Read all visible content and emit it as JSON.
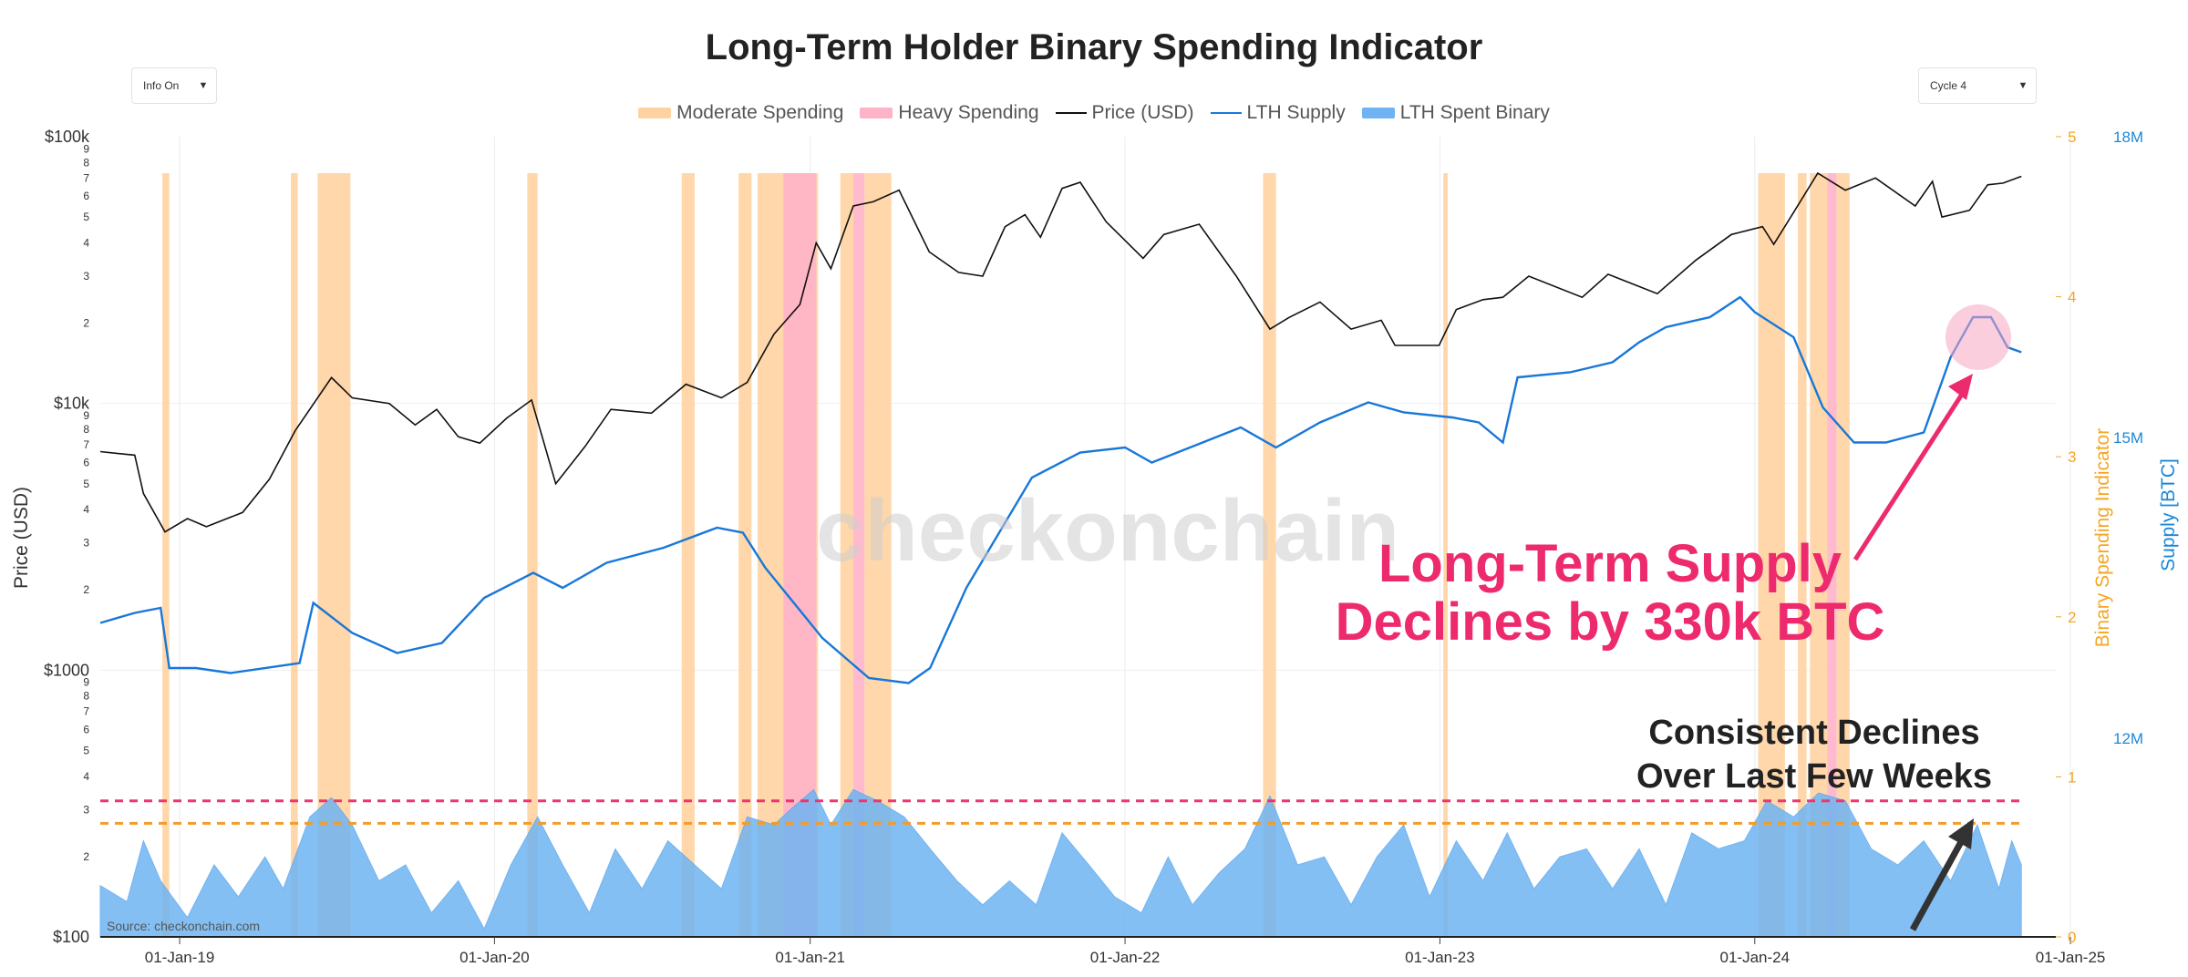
{
  "title": "Long-Term Holder Binary Spending Indicator",
  "info_dropdown": {
    "value": "Info On"
  },
  "cycle_dropdown": {
    "value": "Cycle 4"
  },
  "legend": [
    {
      "label": "Moderate Spending",
      "color": "#ffd3a1",
      "kind": "area"
    },
    {
      "label": "Heavy Spending",
      "color": "#ffb3c8",
      "kind": "area"
    },
    {
      "label": "Price (USD)",
      "color": "#111111",
      "kind": "line"
    },
    {
      "label": "LTH Supply",
      "color": "#1877d8",
      "kind": "line"
    },
    {
      "label": "LTH Spent Binary",
      "color": "#6fb4f2",
      "kind": "area"
    }
  ],
  "watermark": "checkonchain",
  "source": "Source: checkonchain.com",
  "annotations": [
    {
      "text": "Long-Term Supply",
      "color": "#ee2a6e"
    },
    {
      "text": "Declines by 330k BTC",
      "color": "#ee2a6e"
    },
    {
      "text": "Consistent Declines",
      "color": "#222222"
    },
    {
      "text": "Over Last Few Weeks",
      "color": "#222222"
    }
  ],
  "chart_data": {
    "type": "line",
    "title": "Long-Term Holder Binary Spending Indicator",
    "xlim": [
      "2018-10-01",
      "2024-12-15"
    ],
    "x_ticks": [
      "01-Jan-19",
      "01-Jan-20",
      "01-Jan-21",
      "01-Jan-22",
      "01-Jan-23",
      "01-Jan-24",
      "01-Jan-25"
    ],
    "y_left": {
      "label": "Price (USD)",
      "scale": "log",
      "range": [
        100,
        100000
      ],
      "major_ticks": [
        "$100",
        "$1000",
        "$10k",
        "$100k"
      ],
      "minor_ticks": [
        "2",
        "3",
        "4",
        "5",
        "6",
        "7",
        "8",
        "9"
      ]
    },
    "y_right_1": {
      "label": "Binary Spending Indicator",
      "range": [
        0,
        5
      ],
      "ticks": [
        "0",
        "1",
        "2",
        "3",
        "4",
        "5"
      ],
      "color": "#f5a623"
    },
    "y_right_2": {
      "label": "Supply [BTC]",
      "ticks": [
        "12M",
        "15M",
        "18M"
      ],
      "color": "#1a88d8"
    },
    "thresholds": [
      {
        "name": "Heavy",
        "value": 0.85,
        "color": "#f0336d"
      },
      {
        "name": "Moderate",
        "value": 0.71,
        "color": "#f39c2a"
      }
    ],
    "series": [
      {
        "name": "Price (USD)",
        "axis": "left",
        "color": "#111111",
        "points": [
          [
            "2018-10-01",
            6600
          ],
          [
            "2018-10-20",
            6500
          ],
          [
            "2018-11-10",
            6400
          ],
          [
            "2018-11-20",
            4600
          ],
          [
            "2018-12-15",
            3300
          ],
          [
            "2019-01-10",
            3700
          ],
          [
            "2019-02-01",
            3450
          ],
          [
            "2019-03-15",
            3900
          ],
          [
            "2019-04-15",
            5200
          ],
          [
            "2019-05-15",
            7900
          ],
          [
            "2019-06-26",
            12500
          ],
          [
            "2019-07-20",
            10500
          ],
          [
            "2019-09-01",
            10000
          ],
          [
            "2019-10-01",
            8300
          ],
          [
            "2019-10-26",
            9500
          ],
          [
            "2019-11-20",
            7500
          ],
          [
            "2019-12-15",
            7100
          ],
          [
            "2020-01-15",
            8800
          ],
          [
            "2020-02-13",
            10300
          ],
          [
            "2020-03-12",
            5000
          ],
          [
            "2020-04-15",
            6900
          ],
          [
            "2020-05-15",
            9500
          ],
          [
            "2020-07-01",
            9200
          ],
          [
            "2020-08-10",
            11800
          ],
          [
            "2020-09-20",
            10500
          ],
          [
            "2020-10-20",
            12000
          ],
          [
            "2020-11-20",
            18200
          ],
          [
            "2020-12-20",
            23500
          ],
          [
            "2021-01-08",
            40000
          ],
          [
            "2021-01-25",
            32000
          ],
          [
            "2021-02-20",
            55000
          ],
          [
            "2021-03-15",
            57000
          ],
          [
            "2021-04-14",
            63000
          ],
          [
            "2021-05-19",
            37000
          ],
          [
            "2021-06-22",
            31000
          ],
          [
            "2021-07-20",
            30000
          ],
          [
            "2021-08-15",
            46000
          ],
          [
            "2021-09-07",
            51000
          ],
          [
            "2021-09-25",
            42000
          ],
          [
            "2021-10-20",
            64000
          ],
          [
            "2021-11-10",
            67500
          ],
          [
            "2021-12-10",
            48000
          ],
          [
            "2022-01-22",
            35000
          ],
          [
            "2022-02-15",
            43000
          ],
          [
            "2022-03-28",
            47000
          ],
          [
            "2022-05-10",
            30000
          ],
          [
            "2022-06-18",
            19000
          ],
          [
            "2022-07-10",
            21000
          ],
          [
            "2022-08-15",
            24000
          ],
          [
            "2022-09-20",
            19000
          ],
          [
            "2022-10-25",
            20500
          ],
          [
            "2022-11-10",
            16500
          ],
          [
            "2022-12-31",
            16500
          ],
          [
            "2023-01-20",
            22500
          ],
          [
            "2023-02-20",
            24500
          ],
          [
            "2023-03-15",
            25000
          ],
          [
            "2023-04-14",
            30000
          ],
          [
            "2023-06-15",
            25000
          ],
          [
            "2023-07-15",
            30500
          ],
          [
            "2023-09-10",
            25800
          ],
          [
            "2023-10-25",
            34500
          ],
          [
            "2023-12-05",
            43000
          ],
          [
            "2024-01-10",
            46000
          ],
          [
            "2024-01-23",
            39500
          ],
          [
            "2024-02-15",
            52000
          ],
          [
            "2024-03-14",
            73000
          ],
          [
            "2024-04-15",
            63000
          ],
          [
            "2024-05-20",
            70000
          ],
          [
            "2024-07-05",
            55000
          ],
          [
            "2024-07-25",
            68000
          ],
          [
            "2024-08-05",
            50000
          ],
          [
            "2024-09-06",
            53000
          ],
          [
            "2024-09-27",
            66000
          ],
          [
            "2024-10-15",
            67000
          ],
          [
            "2024-11-05",
            71000
          ]
        ]
      },
      {
        "name": "LTH Supply",
        "axis": "right_2",
        "color": "#1877d8",
        "unit": "M BTC",
        "points": [
          [
            "2018-10-01",
            13.15
          ],
          [
            "2018-11-10",
            13.25
          ],
          [
            "2018-12-10",
            13.3
          ],
          [
            "2018-12-20",
            12.7
          ],
          [
            "2019-01-20",
            12.7
          ],
          [
            "2019-03-01",
            12.65
          ],
          [
            "2019-05-20",
            12.75
          ],
          [
            "2019-06-05",
            13.35
          ],
          [
            "2019-07-20",
            13.05
          ],
          [
            "2019-09-10",
            12.85
          ],
          [
            "2019-11-01",
            12.95
          ],
          [
            "2019-12-20",
            13.4
          ],
          [
            "2020-02-15",
            13.65
          ],
          [
            "2020-03-20",
            13.5
          ],
          [
            "2020-05-10",
            13.75
          ],
          [
            "2020-07-15",
            13.9
          ],
          [
            "2020-09-15",
            14.1
          ],
          [
            "2020-10-15",
            14.05
          ],
          [
            "2020-11-10",
            13.7
          ],
          [
            "2021-01-15",
            13.0
          ],
          [
            "2021-03-10",
            12.6
          ],
          [
            "2021-04-25",
            12.55
          ],
          [
            "2021-05-20",
            12.7
          ],
          [
            "2021-07-01",
            13.5
          ],
          [
            "2021-09-15",
            14.6
          ],
          [
            "2021-11-10",
            14.85
          ],
          [
            "2022-01-01",
            14.9
          ],
          [
            "2022-02-01",
            14.75
          ],
          [
            "2022-04-01",
            14.95
          ],
          [
            "2022-05-15",
            15.1
          ],
          [
            "2022-06-25",
            14.9
          ],
          [
            "2022-08-15",
            15.15
          ],
          [
            "2022-10-10",
            15.35
          ],
          [
            "2022-11-20",
            15.25
          ],
          [
            "2023-01-15",
            15.2
          ],
          [
            "2023-02-15",
            15.15
          ],
          [
            "2023-03-15",
            14.95
          ],
          [
            "2023-04-01",
            15.6
          ],
          [
            "2023-06-01",
            15.65
          ],
          [
            "2023-07-20",
            15.75
          ],
          [
            "2023-08-20",
            15.95
          ],
          [
            "2023-09-20",
            16.1
          ],
          [
            "2023-11-10",
            16.2
          ],
          [
            "2023-12-15",
            16.4
          ],
          [
            "2024-01-01",
            16.25
          ],
          [
            "2024-02-15",
            16.0
          ],
          [
            "2024-03-20",
            15.3
          ],
          [
            "2024-04-25",
            14.95
          ],
          [
            "2024-06-01",
            14.95
          ],
          [
            "2024-07-15",
            15.05
          ],
          [
            "2024-08-15",
            15.8
          ],
          [
            "2024-09-10",
            16.2
          ],
          [
            "2024-10-01",
            16.2
          ],
          [
            "2024-10-20",
            15.9
          ],
          [
            "2024-11-05",
            15.85
          ]
        ]
      },
      {
        "name": "LTH Spent Binary",
        "axis": "right_1",
        "color": "#6fb4f2",
        "kind": "area",
        "points": [
          [
            "2018-10-01",
            0.32
          ],
          [
            "2018-11-01",
            0.22
          ],
          [
            "2018-11-20",
            0.6
          ],
          [
            "2018-12-10",
            0.35
          ],
          [
            "2019-01-10",
            0.12
          ],
          [
            "2019-02-10",
            0.45
          ],
          [
            "2019-03-10",
            0.25
          ],
          [
            "2019-04-10",
            0.5
          ],
          [
            "2019-05-01",
            0.3
          ],
          [
            "2019-06-01",
            0.75
          ],
          [
            "2019-06-26",
            0.87
          ],
          [
            "2019-07-20",
            0.7
          ],
          [
            "2019-08-20",
            0.35
          ],
          [
            "2019-09-20",
            0.45
          ],
          [
            "2019-10-20",
            0.15
          ],
          [
            "2019-11-20",
            0.35
          ],
          [
            "2019-12-20",
            0.05
          ],
          [
            "2020-01-20",
            0.45
          ],
          [
            "2020-02-20",
            0.75
          ],
          [
            "2020-03-20",
            0.45
          ],
          [
            "2020-04-20",
            0.15
          ],
          [
            "2020-05-20",
            0.55
          ],
          [
            "2020-06-20",
            0.3
          ],
          [
            "2020-07-20",
            0.6
          ],
          [
            "2020-08-20",
            0.45
          ],
          [
            "2020-09-20",
            0.3
          ],
          [
            "2020-10-20",
            0.75
          ],
          [
            "2020-11-20",
            0.7
          ],
          [
            "2020-12-10",
            0.8
          ],
          [
            "2021-01-05",
            0.92
          ],
          [
            "2021-01-25",
            0.7
          ],
          [
            "2021-02-20",
            0.92
          ],
          [
            "2021-03-20",
            0.85
          ],
          [
            "2021-04-20",
            0.75
          ],
          [
            "2021-05-20",
            0.55
          ],
          [
            "2021-06-20",
            0.35
          ],
          [
            "2021-07-20",
            0.2
          ],
          [
            "2021-08-20",
            0.35
          ],
          [
            "2021-09-20",
            0.2
          ],
          [
            "2021-10-20",
            0.65
          ],
          [
            "2021-11-20",
            0.45
          ],
          [
            "2021-12-20",
            0.25
          ],
          [
            "2022-01-20",
            0.15
          ],
          [
            "2022-02-20",
            0.5
          ],
          [
            "2022-03-20",
            0.2
          ],
          [
            "2022-04-20",
            0.4
          ],
          [
            "2022-05-20",
            0.55
          ],
          [
            "2022-06-18",
            0.88
          ],
          [
            "2022-07-20",
            0.45
          ],
          [
            "2022-08-20",
            0.5
          ],
          [
            "2022-09-20",
            0.2
          ],
          [
            "2022-10-20",
            0.5
          ],
          [
            "2022-11-20",
            0.7
          ],
          [
            "2022-12-20",
            0.25
          ],
          [
            "2023-01-20",
            0.6
          ],
          [
            "2023-02-20",
            0.35
          ],
          [
            "2023-03-20",
            0.65
          ],
          [
            "2023-04-20",
            0.3
          ],
          [
            "2023-05-20",
            0.5
          ],
          [
            "2023-06-20",
            0.55
          ],
          [
            "2023-07-20",
            0.3
          ],
          [
            "2023-08-20",
            0.55
          ],
          [
            "2023-09-20",
            0.2
          ],
          [
            "2023-10-20",
            0.65
          ],
          [
            "2023-11-20",
            0.55
          ],
          [
            "2023-12-20",
            0.6
          ],
          [
            "2024-01-15",
            0.85
          ],
          [
            "2024-02-15",
            0.75
          ],
          [
            "2024-03-15",
            0.9
          ],
          [
            "2024-04-15",
            0.85
          ],
          [
            "2024-05-15",
            0.55
          ],
          [
            "2024-06-15",
            0.45
          ],
          [
            "2024-07-15",
            0.6
          ],
          [
            "2024-08-15",
            0.35
          ],
          [
            "2024-09-15",
            0.7
          ],
          [
            "2024-10-10",
            0.3
          ],
          [
            "2024-10-25",
            0.6
          ],
          [
            "2024-11-05",
            0.45
          ]
        ]
      }
    ],
    "spending_bands": [
      {
        "type": "moderate",
        "start": "2018-12-12",
        "end": "2018-12-20"
      },
      {
        "type": "moderate",
        "start": "2019-05-10",
        "end": "2019-05-18"
      },
      {
        "type": "moderate",
        "start": "2019-06-10",
        "end": "2019-07-18"
      },
      {
        "type": "moderate",
        "start": "2020-02-08",
        "end": "2020-02-20"
      },
      {
        "type": "moderate",
        "start": "2020-08-05",
        "end": "2020-08-20"
      },
      {
        "type": "moderate",
        "start": "2020-10-10",
        "end": "2020-10-25"
      },
      {
        "type": "moderate",
        "start": "2020-11-01",
        "end": "2021-01-10"
      },
      {
        "type": "heavy",
        "start": "2020-12-01",
        "end": "2021-01-08"
      },
      {
        "type": "moderate",
        "start": "2021-02-05",
        "end": "2021-02-20"
      },
      {
        "type": "heavy",
        "start": "2021-02-20",
        "end": "2021-03-05"
      },
      {
        "type": "moderate",
        "start": "2021-03-05",
        "end": "2021-04-05"
      },
      {
        "type": "moderate",
        "start": "2022-06-10",
        "end": "2022-06-25"
      },
      {
        "type": "moderate",
        "start": "2023-01-05",
        "end": "2023-01-10"
      },
      {
        "type": "moderate",
        "start": "2024-01-05",
        "end": "2024-02-05"
      },
      {
        "type": "moderate",
        "start": "2024-02-20",
        "end": "2024-03-01"
      },
      {
        "type": "moderate",
        "start": "2024-03-05",
        "end": "2024-03-25"
      },
      {
        "type": "heavy",
        "start": "2024-03-25",
        "end": "2024-04-05"
      },
      {
        "type": "moderate",
        "start": "2024-04-05",
        "end": "2024-04-20"
      }
    ]
  }
}
